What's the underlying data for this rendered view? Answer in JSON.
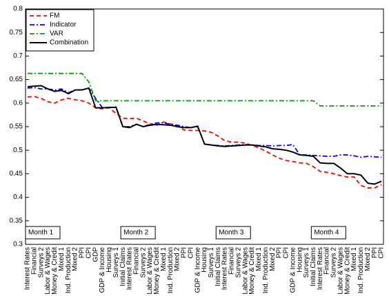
{
  "chart_data": {
    "type": "line",
    "categories": [
      "Interest Rates",
      "Financial",
      "Surveys 2",
      "Labor & Wages",
      "Money & Credit",
      "Mixed 1",
      "Ind. Production",
      "Mixed 2",
      "PPI",
      "CPI",
      "GDP",
      "GDP & Income",
      "Housing",
      "Surveys 1",
      "Initial Claims",
      "Interest Rates",
      "Financial",
      "Surveys 2",
      "Labor & Wages",
      "Money & Credit",
      "Mixed 1",
      "Ind. Production",
      "Mixed 2",
      "PPI",
      "CPI",
      "GDP & Income",
      "Housing",
      "Surveys 1",
      "Initial Claims",
      "Interest Rates",
      "Financial",
      "Surveys 2",
      "Labor & Wages",
      "Money & Credit",
      "Mixed 1",
      "Ind. Production",
      "Mixed 2",
      "PPI",
      "CPI",
      "GDP & Income",
      "Housing",
      "Surveys 1",
      "Initial Claims",
      "Interest Rates",
      "Financial",
      "Surveys 2",
      "Labor & Wages",
      "Money & Credit",
      "Mixed 1",
      "Ind. Production",
      "Mixed 2",
      "PPI",
      "CPI"
    ],
    "series": [
      {
        "name": "FM",
        "color": "#ff0000",
        "line_style": "dashed",
        "values": [
          0.613,
          0.614,
          0.61,
          0.603,
          0.6,
          0.607,
          0.61,
          0.607,
          0.605,
          0.6,
          0.59,
          0.588,
          0.59,
          0.578,
          0.568,
          0.567,
          0.568,
          0.562,
          0.556,
          0.553,
          0.56,
          0.556,
          0.552,
          0.543,
          0.542,
          0.542,
          0.541,
          0.538,
          0.53,
          0.52,
          0.517,
          0.517,
          0.515,
          0.51,
          0.505,
          0.498,
          0.49,
          0.483,
          0.478,
          0.476,
          0.473,
          0.472,
          0.465,
          0.455,
          0.453,
          0.45,
          0.446,
          0.443,
          0.443,
          0.425,
          0.42,
          0.42,
          0.427
        ]
      },
      {
        "name": "Indicator",
        "color": "#0000ff",
        "line_style": "dashdot",
        "values": [
          0.632,
          0.633,
          0.63,
          0.63,
          0.628,
          0.63,
          0.622,
          0.628,
          0.628,
          0.632,
          0.61,
          0.59,
          0.59,
          0.592,
          0.55,
          0.55,
          0.555,
          0.55,
          0.555,
          0.558,
          0.558,
          0.555,
          0.553,
          0.55,
          0.548,
          0.55,
          0.513,
          0.511,
          0.51,
          0.509,
          0.51,
          0.511,
          0.512,
          0.511,
          0.51,
          0.51,
          0.509,
          0.51,
          0.51,
          0.512,
          0.49,
          0.49,
          0.489,
          0.488,
          0.487,
          0.487,
          0.49,
          0.49,
          0.488,
          0.485,
          0.487,
          0.486,
          0.485
        ]
      },
      {
        "name": "VAR",
        "color": "#00a000",
        "line_style": "dashdot",
        "values": [
          0.663,
          0.663,
          0.663,
          0.663,
          0.663,
          0.663,
          0.663,
          0.663,
          0.663,
          0.645,
          0.605,
          0.605,
          0.605,
          0.605,
          0.605,
          0.605,
          0.605,
          0.605,
          0.605,
          0.605,
          0.605,
          0.605,
          0.605,
          0.605,
          0.605,
          0.605,
          0.605,
          0.605,
          0.605,
          0.605,
          0.605,
          0.605,
          0.605,
          0.605,
          0.605,
          0.605,
          0.605,
          0.605,
          0.605,
          0.605,
          0.605,
          0.605,
          0.605,
          0.594,
          0.594,
          0.594,
          0.594,
          0.594,
          0.594,
          0.594,
          0.594,
          0.594,
          0.594
        ]
      },
      {
        "name": "Combination",
        "color": "#000000",
        "line_style": "solid",
        "values": [
          0.635,
          0.636,
          0.637,
          0.63,
          0.625,
          0.627,
          0.62,
          0.628,
          0.628,
          0.632,
          0.59,
          0.59,
          0.591,
          0.591,
          0.55,
          0.548,
          0.555,
          0.55,
          0.553,
          0.555,
          0.554,
          0.553,
          0.55,
          0.548,
          0.548,
          0.551,
          0.513,
          0.511,
          0.509,
          0.508,
          0.509,
          0.51,
          0.511,
          0.511,
          0.509,
          0.507,
          0.503,
          0.502,
          0.5,
          0.496,
          0.49,
          0.489,
          0.487,
          0.473,
          0.472,
          0.472,
          0.462,
          0.45,
          0.45,
          0.447,
          0.43,
          0.428,
          0.434
        ]
      }
    ],
    "ylim": [
      0.3,
      0.8
    ],
    "yticks": [
      0.3,
      0.35,
      0.4,
      0.45,
      0.5,
      0.55,
      0.6,
      0.65,
      0.7,
      0.75,
      0.8
    ],
    "legend": "top-left",
    "annotations": [
      {
        "text": "Month 1",
        "x": 0
      },
      {
        "text": "Month 2",
        "x": 14
      },
      {
        "text": "Month 3",
        "x": 28
      },
      {
        "text": "Month 4",
        "x": 42
      }
    ]
  }
}
